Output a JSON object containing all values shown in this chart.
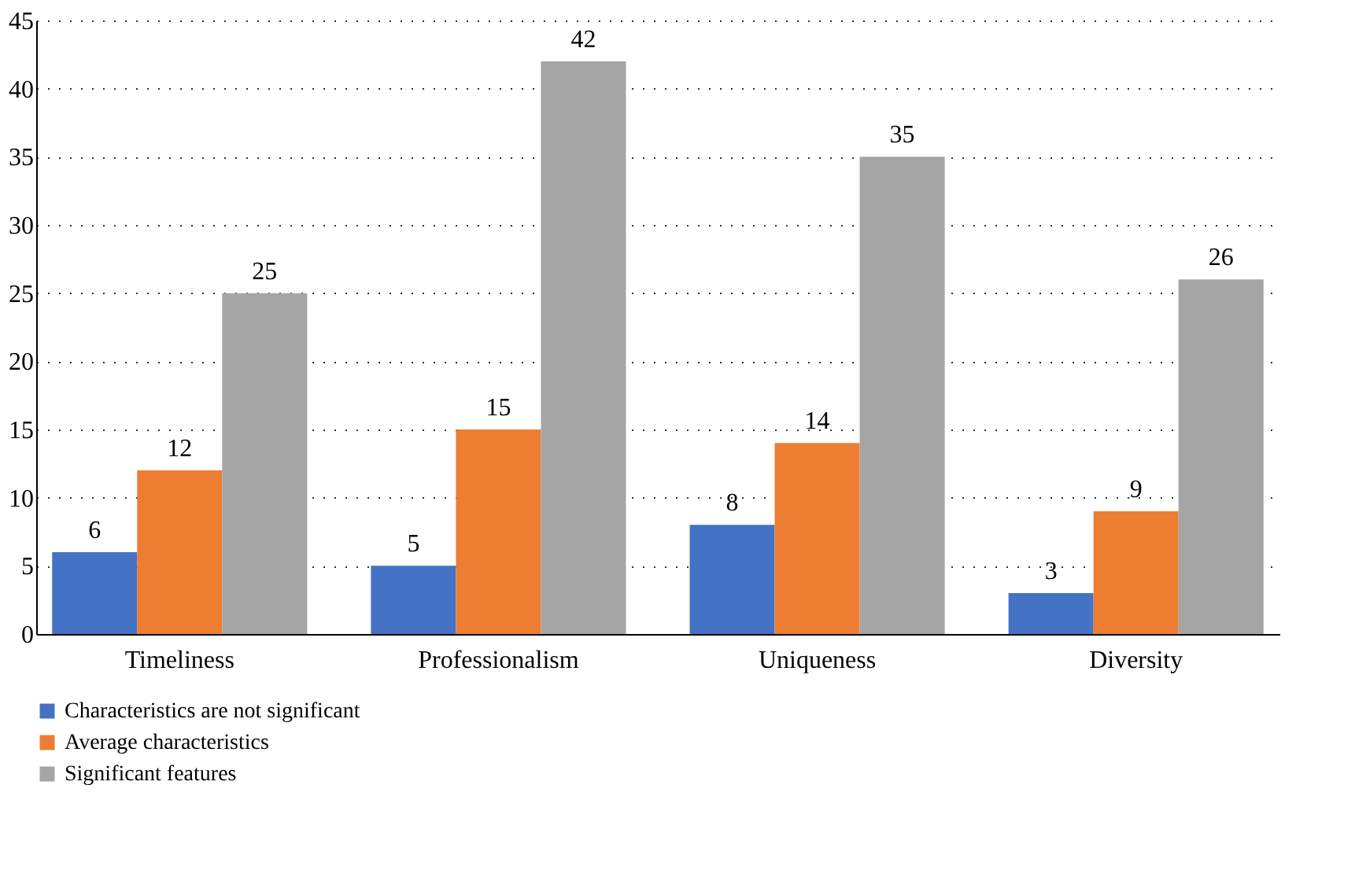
{
  "chart_data": {
    "type": "bar",
    "categories": [
      "Timeliness",
      "Professionalism",
      "Uniqueness",
      "Diversity"
    ],
    "series": [
      {
        "name": "Characteristics are not significant",
        "color": "#4472c4",
        "values": [
          6,
          5,
          8,
          3
        ]
      },
      {
        "name": "Average characteristics",
        "color": "#ed7d31",
        "values": [
          12,
          15,
          14,
          9
        ]
      },
      {
        "name": "Significant features",
        "color": "#a5a5a5",
        "values": [
          25,
          42,
          35,
          26
        ]
      }
    ],
    "ylim": [
      0,
      45
    ],
    "yticks": [
      0,
      5,
      10,
      15,
      20,
      25,
      30,
      35,
      40,
      45
    ],
    "grid": "y",
    "legend": "bottom left",
    "data_labels": true
  }
}
